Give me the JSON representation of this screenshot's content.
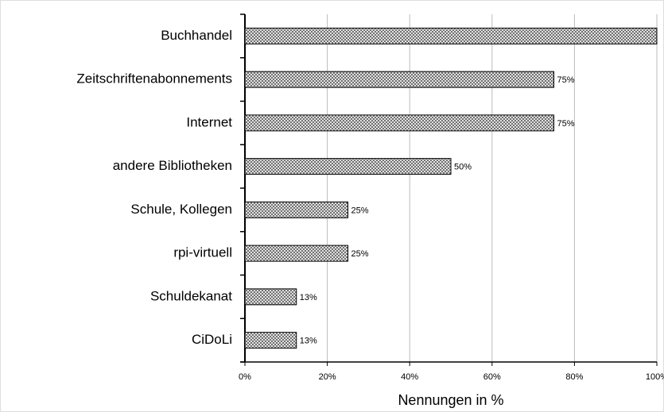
{
  "chart_data": {
    "type": "bar",
    "orientation": "horizontal",
    "categories": [
      "Buchhandel",
      "Zeitschriftenabonnements",
      "Internet",
      "andere Bibliotheken",
      "Schule, Kollegen",
      "rpi-virtuell",
      "Schuldekanat",
      "CiDoLi"
    ],
    "values": [
      100,
      75,
      75,
      50,
      25,
      25,
      12.5,
      12.5
    ],
    "value_labels": [
      null,
      "75%",
      "75%",
      "50%",
      "25%",
      "25%",
      "13%",
      "13%"
    ],
    "color": "#555555",
    "xlabel": "Nennungen in %",
    "xlim": [
      0,
      100
    ],
    "xticks": [
      {
        "value": 0,
        "label": "0%"
      },
      {
        "value": 20,
        "label": "20%"
      },
      {
        "value": 40,
        "label": "40%"
      },
      {
        "value": 60,
        "label": "60%"
      },
      {
        "value": 80,
        "label": "80%"
      },
      {
        "value": 100,
        "label": "100%"
      }
    ],
    "grid": true
  }
}
